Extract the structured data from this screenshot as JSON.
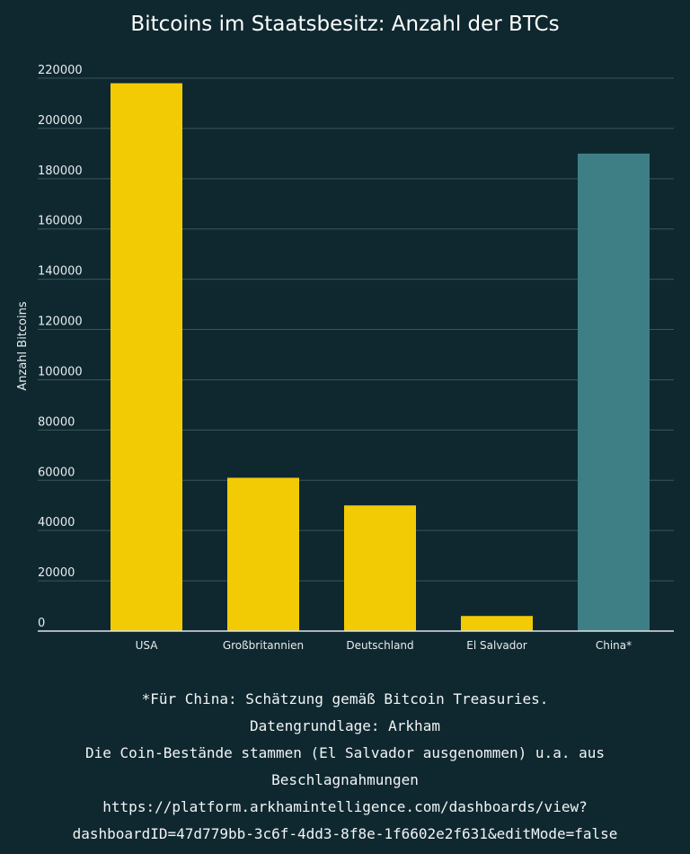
{
  "chart_data": {
    "type": "bar",
    "title": "Bitcoins im Staatsbesitz: Anzahl der BTCs",
    "xlabel": "",
    "ylabel": "Anzahl Bitcoins",
    "categories": [
      "USA",
      "Großbritannien",
      "Deutschland",
      "El Salvador",
      "China*"
    ],
    "values": [
      218000,
      61000,
      50000,
      6000,
      190000
    ],
    "bar_colors": [
      "#f2cb05",
      "#f2cb05",
      "#f2cb05",
      "#f2cb05",
      "#3e7f85"
    ],
    "ylim": [
      0,
      220000
    ],
    "yticks": [
      0,
      20000,
      40000,
      60000,
      80000,
      100000,
      120000,
      140000,
      160000,
      180000,
      200000,
      220000
    ],
    "grid": true,
    "colors": {
      "background": "#0f2830",
      "grid": "#3b555c",
      "axis": "#dfe6e8"
    }
  },
  "footnotes": [
    "*Für China: Schätzung gemäß Bitcoin Treasuries.",
    "Datengrundlage: Arkham",
    "Die Coin-Bestände stammen (El Salvador ausgenommen) u.a. aus",
    "Beschlagnahmungen",
    "https://platform.arkhamintelligence.com/dashboards/view?",
    "dashboardID=47d779bb-3c6f-4dd3-8f8e-1f6602e2f631&editMode=false"
  ]
}
